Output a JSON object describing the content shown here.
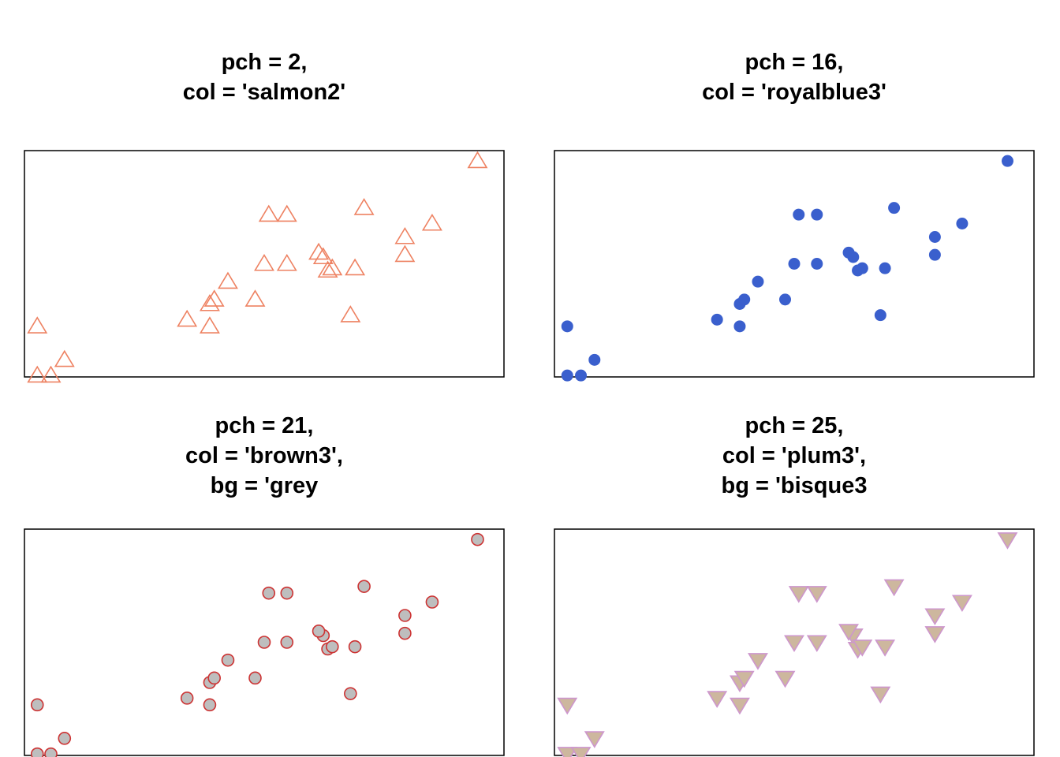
{
  "chart_data": [
    {
      "type": "scatter",
      "title_lines": [
        "pch = 2,",
        "col = 'salmon2'"
      ],
      "marker": "triangle-open",
      "colors": {
        "stroke": "#EE8262",
        "fill": "none"
      },
      "xlim": [
        -0.03,
        1.03
      ],
      "ylim": [
        -0.01,
        1.01
      ],
      "axes_shown": false,
      "grid": false,
      "x": [
        0.0,
        0.03,
        0.0,
        0.06,
        0.33,
        0.38,
        0.38,
        0.39,
        0.42,
        0.5,
        0.51,
        0.48,
        0.55,
        0.55,
        0.63,
        0.62,
        0.64,
        0.65,
        0.7,
        0.72,
        0.69,
        0.81,
        0.81,
        0.87,
        0.97
      ],
      "y": [
        0.0,
        0.0,
        0.22,
        0.07,
        0.25,
        0.22,
        0.32,
        0.34,
        0.42,
        0.5,
        0.72,
        0.34,
        0.5,
        0.72,
        0.53,
        0.55,
        0.47,
        0.48,
        0.48,
        0.75,
        0.27,
        0.54,
        0.62,
        0.68,
        0.96
      ]
    },
    {
      "type": "scatter",
      "title_lines": [
        "pch = 16,",
        "col = 'royalblue3'"
      ],
      "marker": "circle-filled",
      "colors": {
        "stroke": "#3A5FCD",
        "fill": "#3A5FCD"
      },
      "xlim": [
        -0.03,
        1.03
      ],
      "ylim": [
        -0.01,
        1.01
      ],
      "axes_shown": false,
      "grid": false,
      "x": [
        0.0,
        0.03,
        0.0,
        0.06,
        0.33,
        0.38,
        0.38,
        0.39,
        0.42,
        0.5,
        0.51,
        0.48,
        0.55,
        0.55,
        0.63,
        0.62,
        0.64,
        0.65,
        0.7,
        0.72,
        0.69,
        0.81,
        0.81,
        0.87,
        0.97
      ],
      "y": [
        0.0,
        0.0,
        0.22,
        0.07,
        0.25,
        0.22,
        0.32,
        0.34,
        0.42,
        0.5,
        0.72,
        0.34,
        0.5,
        0.72,
        0.53,
        0.55,
        0.47,
        0.48,
        0.48,
        0.75,
        0.27,
        0.54,
        0.62,
        0.68,
        0.96
      ]
    },
    {
      "type": "scatter",
      "title_lines": [
        "pch = 21,",
        "col = 'brown3',",
        "bg = 'grey"
      ],
      "marker": "circle-filled-bordered",
      "colors": {
        "stroke": "#CD3333",
        "fill": "#BEBEBE"
      },
      "xlim": [
        -0.03,
        1.03
      ],
      "ylim": [
        -0.01,
        1.01
      ],
      "axes_shown": false,
      "grid": false,
      "x": [
        0.0,
        0.03,
        0.0,
        0.06,
        0.33,
        0.38,
        0.38,
        0.39,
        0.42,
        0.5,
        0.51,
        0.48,
        0.55,
        0.55,
        0.63,
        0.62,
        0.64,
        0.65,
        0.7,
        0.72,
        0.69,
        0.81,
        0.81,
        0.87,
        0.97
      ],
      "y": [
        0.0,
        0.0,
        0.22,
        0.07,
        0.25,
        0.22,
        0.32,
        0.34,
        0.42,
        0.5,
        0.72,
        0.34,
        0.5,
        0.72,
        0.53,
        0.55,
        0.47,
        0.48,
        0.48,
        0.75,
        0.27,
        0.54,
        0.62,
        0.68,
        0.96
      ]
    },
    {
      "type": "scatter",
      "title_lines": [
        "pch = 25,",
        "col = 'plum3',",
        "bg = 'bisque3"
      ],
      "marker": "triangle-down-filled",
      "colors": {
        "stroke": "#CD96CD",
        "fill": "#CDB79E"
      },
      "xlim": [
        -0.03,
        1.03
      ],
      "ylim": [
        -0.01,
        1.01
      ],
      "axes_shown": false,
      "grid": false,
      "x": [
        0.0,
        0.03,
        0.0,
        0.06,
        0.33,
        0.38,
        0.38,
        0.39,
        0.42,
        0.5,
        0.51,
        0.48,
        0.55,
        0.55,
        0.63,
        0.62,
        0.64,
        0.65,
        0.7,
        0.72,
        0.69,
        0.81,
        0.81,
        0.87,
        0.97
      ],
      "y": [
        0.0,
        0.0,
        0.22,
        0.07,
        0.25,
        0.22,
        0.32,
        0.34,
        0.42,
        0.5,
        0.72,
        0.34,
        0.5,
        0.72,
        0.53,
        0.55,
        0.47,
        0.48,
        0.48,
        0.75,
        0.27,
        0.54,
        0.62,
        0.68,
        0.96
      ]
    }
  ]
}
